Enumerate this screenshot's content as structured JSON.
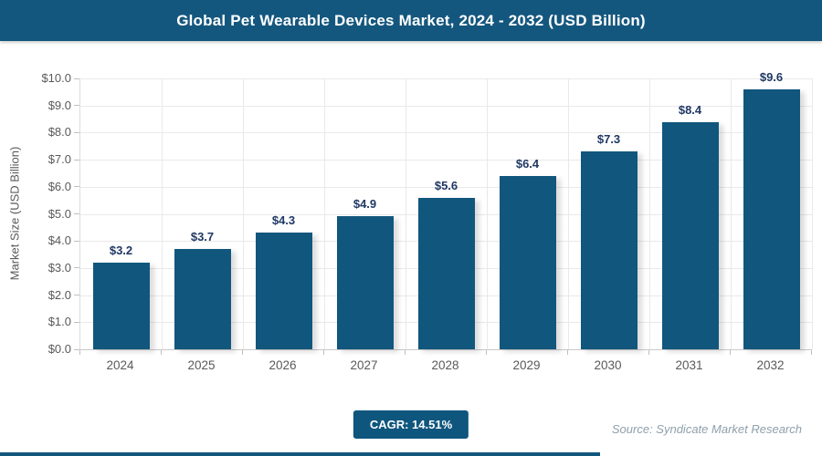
{
  "header": {
    "title": "Global Pet Wearable Devices Market, 2024 - 2032 (USD Billion)"
  },
  "chart_data": {
    "type": "bar",
    "title": "Global Pet Wearable Devices Market, 2024 - 2032 (USD Billion)",
    "categories": [
      "2024",
      "2025",
      "2026",
      "2027",
      "2028",
      "2029",
      "2030",
      "2031",
      "2032"
    ],
    "values": [
      3.2,
      3.7,
      4.3,
      4.9,
      5.6,
      6.4,
      7.3,
      8.4,
      9.6
    ],
    "data_labels": [
      "$3.2",
      "$3.7",
      "$4.3",
      "$4.9",
      "$5.6",
      "$6.4",
      "$7.3",
      "$8.4",
      "$9.6"
    ],
    "xlabel": "",
    "ylabel": "Market Size (USD Billion)",
    "ylim": [
      0,
      10
    ],
    "ytick_step": 1.0,
    "ytick_labels": [
      "$0.0",
      "$1.0",
      "$2.0",
      "$3.0",
      "$4.0",
      "$5.0",
      "$6.0",
      "$7.0",
      "$8.0",
      "$9.0",
      "$10.0"
    ],
    "grid": true,
    "legend": false
  },
  "footer": {
    "cagr_label": "CAGR: 14.51%",
    "source": "Source: Syndicate Market Research"
  },
  "colors": {
    "header_bg": "#14577E",
    "bar": "#11567D",
    "badge_bg": "#0F567E",
    "accent_strip": "#11567D",
    "grid": "#E9E9E9",
    "axis_line": "#C8C8C8",
    "tick": "#BFBFBF",
    "axis_text": "#595959",
    "data_label": "#1F3864",
    "source_text": "#8FA0AB"
  }
}
